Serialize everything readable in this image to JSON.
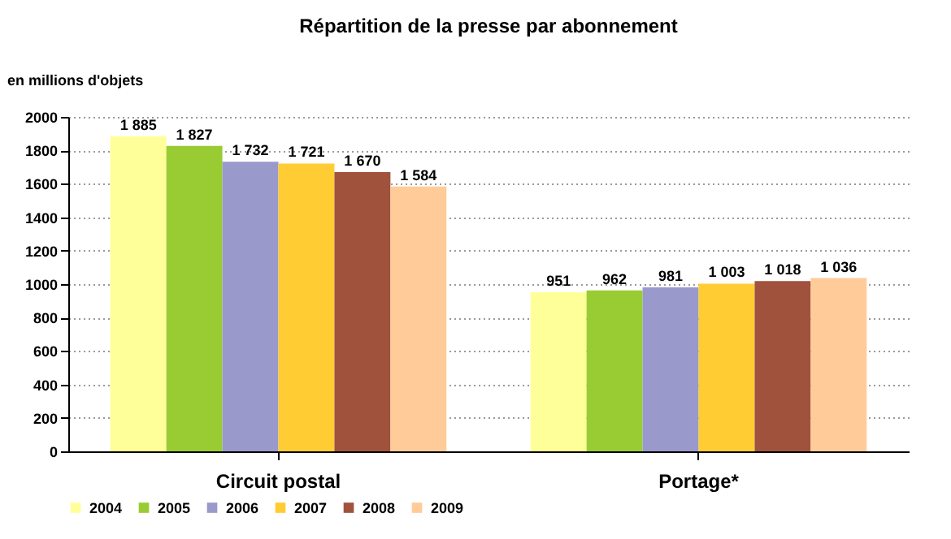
{
  "chart_data": {
    "type": "bar",
    "title": "Répartition de la presse par abonnement",
    "ylabel": "en millions d'objets",
    "categories": [
      "Circuit postal",
      "Portage*"
    ],
    "series": [
      {
        "name": "2004",
        "color": "#ffff99",
        "values": [
          1885,
          951
        ],
        "value_labels": [
          "1 885",
          "951"
        ]
      },
      {
        "name": "2005",
        "color": "#99cc33",
        "values": [
          1827,
          962
        ],
        "value_labels": [
          "1 827",
          "962"
        ]
      },
      {
        "name": "2006",
        "color": "#9999cc",
        "values": [
          1732,
          981
        ],
        "value_labels": [
          "1 732",
          "981"
        ]
      },
      {
        "name": "2007",
        "color": "#ffcc33",
        "values": [
          1721,
          1003
        ],
        "value_labels": [
          "1 721",
          "1 003"
        ]
      },
      {
        "name": "2008",
        "color": "#a0523c",
        "values": [
          1670,
          1018
        ],
        "value_labels": [
          "1 670",
          "1 018"
        ]
      },
      {
        "name": "2009",
        "color": "#ffcc99",
        "values": [
          1584,
          1036
        ],
        "value_labels": [
          "1 584",
          "1 036"
        ]
      }
    ],
    "ylim": [
      0,
      2000
    ],
    "yticks": [
      0,
      200,
      400,
      600,
      800,
      1000,
      1200,
      1400,
      1600,
      1800,
      2000
    ],
    "grid": "y",
    "legend": "bottom"
  }
}
